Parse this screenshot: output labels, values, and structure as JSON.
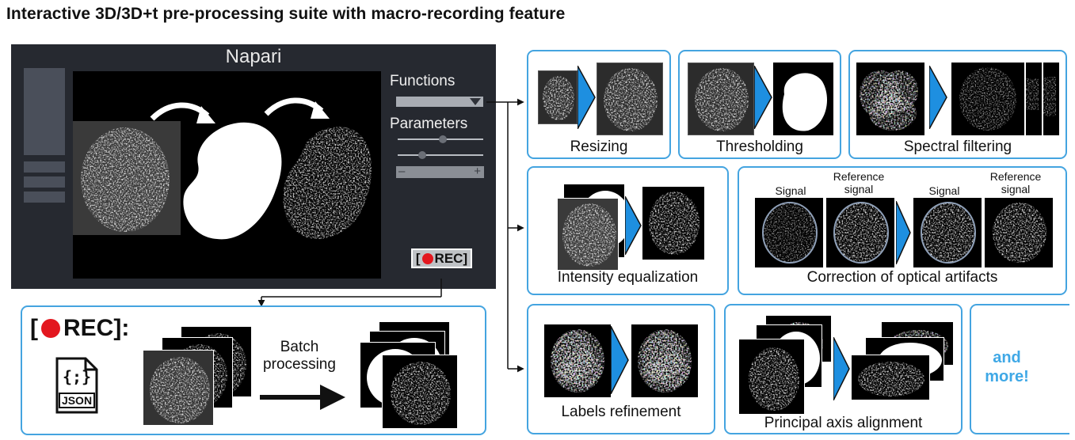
{
  "title": "Interactive 3D/3D+t pre-processing suite with macro-recording feature",
  "napari": {
    "app_title": "Napari",
    "functions_label": "Functions",
    "parameters_label": "Parameters",
    "range_minus": "–",
    "range_plus": "+",
    "rec_open": "[",
    "rec_label": "REC",
    "rec_close": "]"
  },
  "batch": {
    "rec_open": "[",
    "rec_label": "REC",
    "rec_close": "]:",
    "json_label": "JSON",
    "json_braces": "{;}",
    "batch_label_1": "Batch",
    "batch_label_2": "processing"
  },
  "panels": {
    "resizing": "Resizing",
    "thresholding": "Thresholding",
    "spectral": "Spectral filtering",
    "equalization": "Intensity equalization",
    "optical": "Correction of optical artifacts",
    "signal_1": "Signal",
    "reference_1a": "Reference",
    "reference_1b": "signal",
    "signal_2": "Signal",
    "reference_2a": "Reference",
    "reference_2b": "signal",
    "labels": "Labels refinement",
    "principal": "Principal axis alignment",
    "more_1": "and",
    "more_2": "more!"
  },
  "colors": {
    "accent_blue": "#44a4e0",
    "arrow_blue": "#1e8fe0",
    "rec_red": "#e3171f",
    "napari_bg": "#262930"
  }
}
